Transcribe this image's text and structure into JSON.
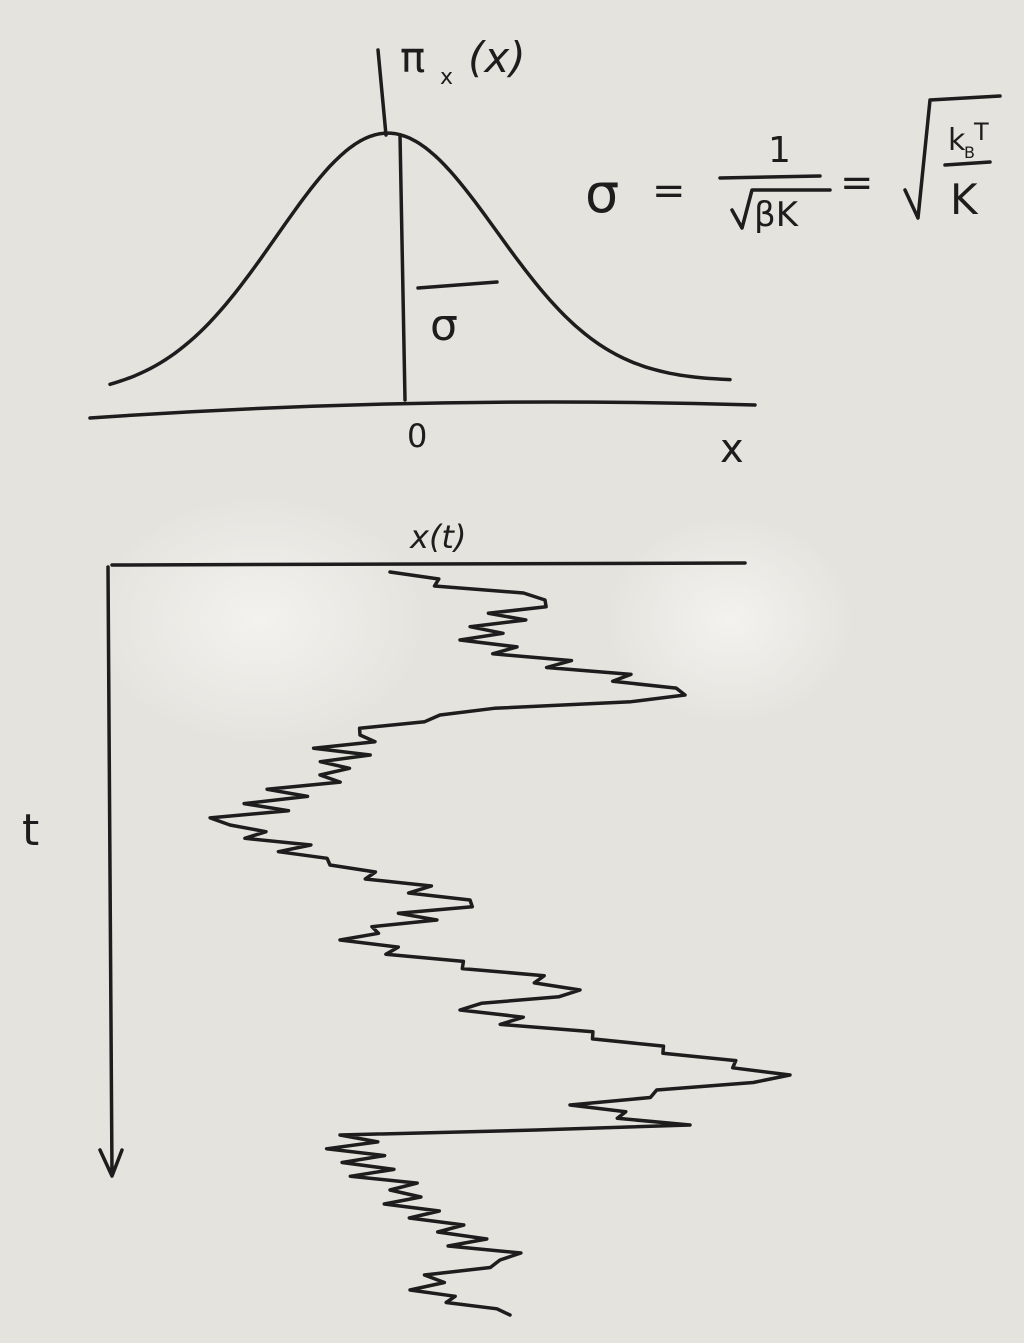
{
  "top_plot": {
    "y_label": "π",
    "y_label_sub": "x",
    "y_label_arg": "(x)",
    "sigma": "σ",
    "origin": "0",
    "x_label": "x"
  },
  "formula": {
    "lhs": "σ",
    "eq1": "=",
    "num": "1",
    "den": "βK",
    "eq2": "=",
    "sqrt_num": "k",
    "sqrt_num_sub": "B",
    "sqrt_num_t": "T",
    "sqrt_den": "K"
  },
  "bottom_plot": {
    "x_label": "x(t)",
    "t_label": "t"
  }
}
